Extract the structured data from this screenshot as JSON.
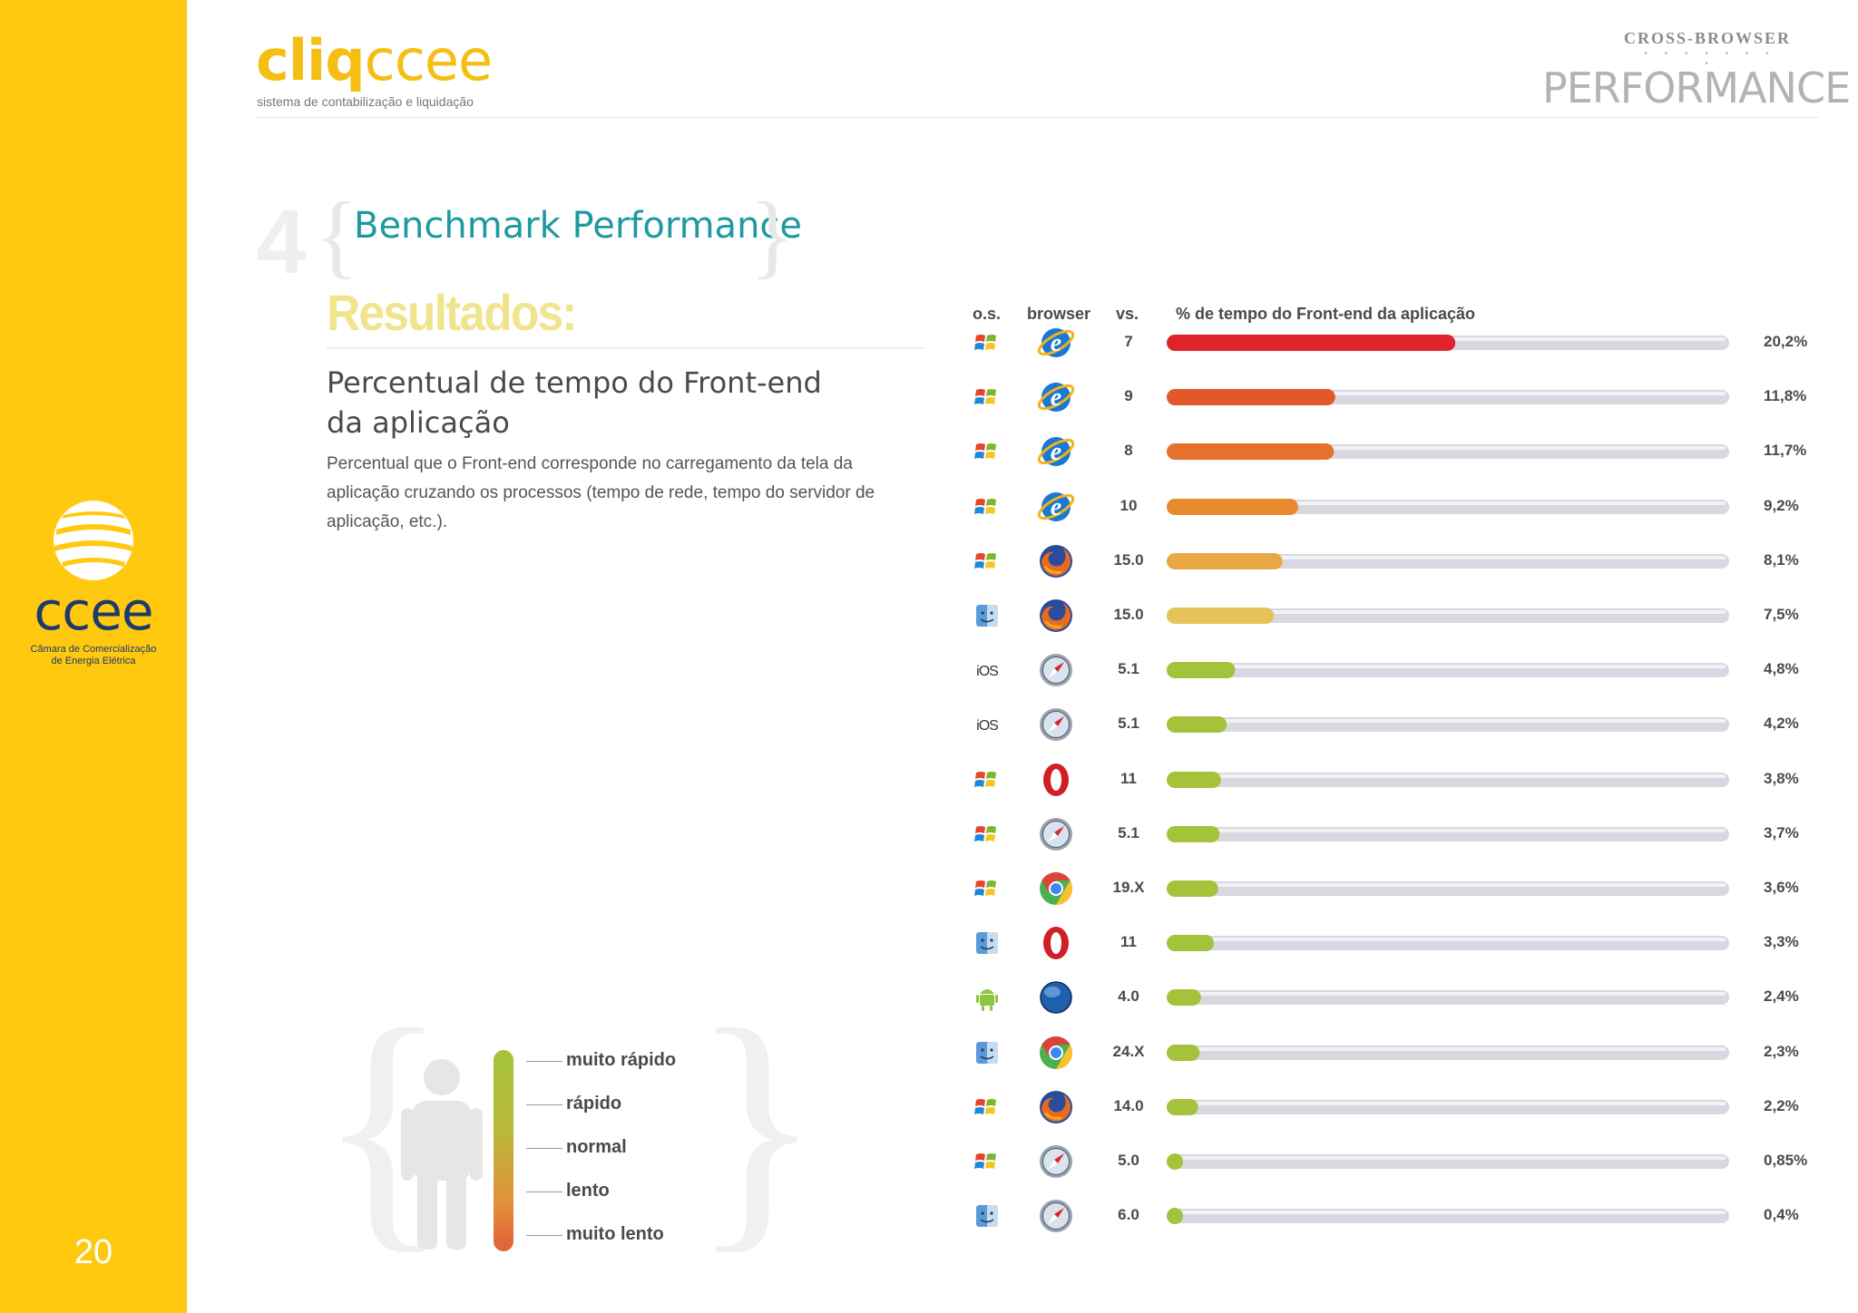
{
  "header": {
    "brand_bold": "cliq",
    "brand_light": "ccee",
    "brand_subtitle": "sistema de contabilização e liquidação",
    "cross_label": "CROSS-BROWSER",
    "cross_dots": "• • • • • • • •",
    "perf_label": "PERFORMANCE"
  },
  "section": {
    "number": "4",
    "title": "Benchmark Performance"
  },
  "results": {
    "title": "Resultados:",
    "subtitle_line1": "Percentual de tempo do Front-end",
    "subtitle_line2": "da aplicação",
    "description": "Percentual que o Front-end corresponde no carregamento da tela da aplicação cruzando os processos (tempo de rede, tempo do servidor de aplicação, etc.)."
  },
  "sidebar": {
    "logo_text": "ccee",
    "tagline_line1": "Câmara de Comercialização",
    "tagline_line2": "de Energia Elétrica",
    "page_number": "20"
  },
  "legend": {
    "labels": [
      "muito rápido",
      "rápido",
      "normal",
      "lento",
      "muito lento"
    ]
  },
  "colors": {
    "sidebar": "#fec90f",
    "accent_teal": "#1d9aa0",
    "track": "#d9d7e0",
    "fast": "#a4c23a",
    "slow": "#e0232a"
  },
  "chart_data": {
    "type": "bar",
    "orientation": "horizontal",
    "title": "% de tempo do Front-end da aplicação",
    "headers": {
      "os": "o.s.",
      "browser": "browser",
      "version": "vs.",
      "value": "% de tempo do Front-end da aplicação"
    },
    "xlim": [
      0,
      40
    ],
    "rows": [
      {
        "os": "windows",
        "browser": "ie",
        "version": "7",
        "value": 20.2,
        "label": "20,2%",
        "color": "#e0232a"
      },
      {
        "os": "windows",
        "browser": "ie",
        "version": "9",
        "value": 11.8,
        "label": "11,8%",
        "color": "#e0592a"
      },
      {
        "os": "windows",
        "browser": "ie",
        "version": "8",
        "value": 11.7,
        "label": "11,7%",
        "color": "#e4712c"
      },
      {
        "os": "windows",
        "browser": "ie",
        "version": "10",
        "value": 9.2,
        "label": "9,2%",
        "color": "#e88a2e"
      },
      {
        "os": "windows",
        "browser": "firefox",
        "version": "15.0",
        "value": 8.1,
        "label": "8,1%",
        "color": "#eaa745"
      },
      {
        "os": "mac",
        "browser": "firefox",
        "version": "15.0",
        "value": 7.5,
        "label": "7,5%",
        "color": "#e6c25a"
      },
      {
        "os": "ios",
        "browser": "safari",
        "version": "5.1",
        "value": 4.8,
        "label": "4,8%",
        "color": "#a4c23a"
      },
      {
        "os": "ios",
        "browser": "safari",
        "version": "5.1",
        "value": 4.2,
        "label": "4,2%",
        "color": "#a4c23a"
      },
      {
        "os": "windows",
        "browser": "opera",
        "version": "11",
        "value": 3.8,
        "label": "3,8%",
        "color": "#a4c23a"
      },
      {
        "os": "windows",
        "browser": "safari",
        "version": "5.1",
        "value": 3.7,
        "label": "3,7%",
        "color": "#a4c23a"
      },
      {
        "os": "windows",
        "browser": "chrome",
        "version": "19.X",
        "value": 3.6,
        "label": "3,6%",
        "color": "#a4c23a"
      },
      {
        "os": "mac",
        "browser": "opera",
        "version": "11",
        "value": 3.3,
        "label": "3,3%",
        "color": "#a4c23a"
      },
      {
        "os": "android",
        "browser": "android-browser",
        "version": "4.0",
        "value": 2.4,
        "label": "2,4%",
        "color": "#a4c23a"
      },
      {
        "os": "mac",
        "browser": "chrome",
        "version": "24.X",
        "value": 2.3,
        "label": "2,3%",
        "color": "#a4c23a"
      },
      {
        "os": "windows",
        "browser": "firefox",
        "version": "14.0",
        "value": 2.2,
        "label": "2,2%",
        "color": "#a4c23a"
      },
      {
        "os": "windows",
        "browser": "safari",
        "version": "5.0",
        "value": 0.85,
        "label": "0,85%",
        "color": "#a4c23a"
      },
      {
        "os": "mac",
        "browser": "safari",
        "version": "6.0",
        "value": 0.4,
        "label": "0,4%",
        "color": "#a4c23a"
      }
    ]
  }
}
